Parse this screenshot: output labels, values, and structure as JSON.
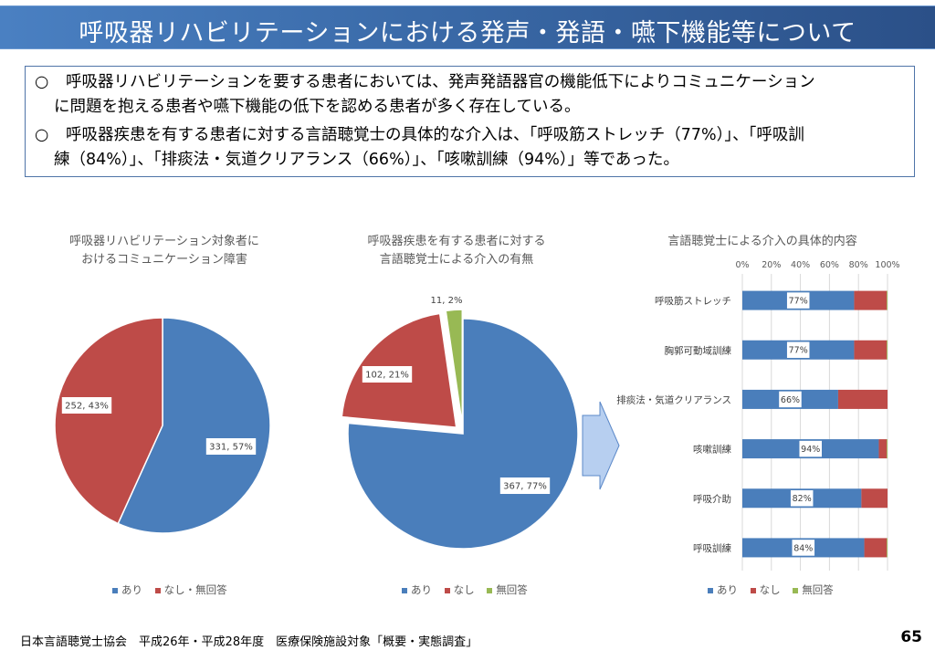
{
  "header": {
    "title": "呼吸器リハビリテーションにおける発声・発語・嚥下機能等について"
  },
  "summary": {
    "bullet_mark": "○",
    "bullets": [
      {
        "line1": "呼吸器リハビリテーションを要する患者においては、発声発語器官の機能低下によりコミュニケーション",
        "line2": "に問題を抱える患者や嚥下機能の低下を認める患者が多く存在している。"
      },
      {
        "line1": "呼吸器疾患を有する患者に対する言語聴覚士の具体的な介入は、「呼吸筋ストレッチ（77%）」、「呼吸訓",
        "line2": "練（84%）」、「排痰法・気道クリアランス（66%）」、「咳嗽訓練（94%）」等であった。"
      }
    ]
  },
  "colors": {
    "blue": "#4a7ebb",
    "red": "#be4b48",
    "green": "#98b954",
    "arrow_fill": "#b7cff0",
    "arrow_stroke": "#5b88c8"
  },
  "chart_data": [
    {
      "type": "pie",
      "title_line1": "呼吸器リハビリテーション対象者に",
      "title_line2": "おけるコミュニケーション障害",
      "slices": [
        {
          "label": "あり",
          "value": 331,
          "percent": 57,
          "data_label": "331, 57%"
        },
        {
          "label": "なし・無回答",
          "value": 252,
          "percent": 43,
          "data_label": "252, 43%"
        }
      ],
      "legend": [
        "あり",
        "なし・無回答"
      ],
      "legend_position": "bottom"
    },
    {
      "type": "pie",
      "title_line1": "呼吸器疾患を有する患者に対する",
      "title_line2": "言語聴覚士による介入の有無",
      "slices": [
        {
          "label": "あり",
          "value": 367,
          "percent": 77,
          "data_label": "367, 77%"
        },
        {
          "label": "なし",
          "value": 102,
          "percent": 21,
          "data_label": "102, 21%"
        },
        {
          "label": "無回答",
          "value": 11,
          "percent": 2,
          "data_label": "11, 2%"
        }
      ],
      "legend": [
        "あり",
        "なし",
        "無回答"
      ],
      "legend_position": "bottom"
    },
    {
      "type": "bar",
      "orientation": "horizontal-stacked-100",
      "title": "言語聴覚士による介入の具体的内容",
      "categories": [
        "呼吸筋ストレッチ",
        "胸郭可動域訓練",
        "排痰法・気道クリアランス",
        "咳嗽訓練",
        "呼吸介助",
        "呼吸訓練"
      ],
      "series": [
        {
          "name": "あり",
          "values": [
            77,
            77,
            66,
            94,
            82,
            84
          ],
          "data_labels": [
            "77%",
            "77%",
            "66%",
            "94%",
            "82%",
            "84%"
          ]
        },
        {
          "name": "なし",
          "values": [
            22.5,
            22.5,
            34,
            5.5,
            18,
            15.5
          ]
        },
        {
          "name": "無回答",
          "values": [
            0.5,
            0.5,
            0,
            0.5,
            0,
            0.5
          ]
        }
      ],
      "xlim": [
        0,
        100
      ],
      "xticks": [
        "0%",
        "20%",
        "40%",
        "60%",
        "80%",
        "100%"
      ],
      "grid": true,
      "legend": [
        "あり",
        "なし",
        "無回答"
      ],
      "legend_position": "bottom"
    }
  ],
  "footer": {
    "source": "日本言語聴覚士協会　平成26年・平成28年度　医療保険施設対象「概要・実態調査」",
    "page": "65"
  }
}
